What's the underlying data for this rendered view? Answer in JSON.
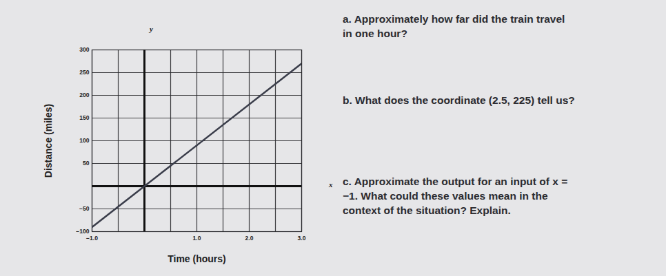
{
  "chart_data": {
    "type": "line",
    "x_label": "Time (hours)",
    "y_label": "Distance (miles)",
    "x": [
      -1,
      0,
      3
    ],
    "values": [
      -90,
      0,
      270
    ],
    "color": "#3a3d4a",
    "xlim": [
      -1,
      3
    ],
    "xticks": [
      -1,
      1,
      2,
      3
    ],
    "ylim": [
      -100,
      300
    ],
    "yticks": [
      -100,
      -50,
      50,
      100,
      150,
      200,
      250,
      300
    ],
    "grid": true,
    "annotations": [
      "y",
      "x"
    ]
  },
  "questions": [
    "a.  Approximately how far did the train travel in one hour?",
    "b.  What does the coordinate (2.5, 225) tell us?",
    "c.  Approximate the output for an input of x = −1. What could these values mean in the context of the situation? Explain."
  ]
}
